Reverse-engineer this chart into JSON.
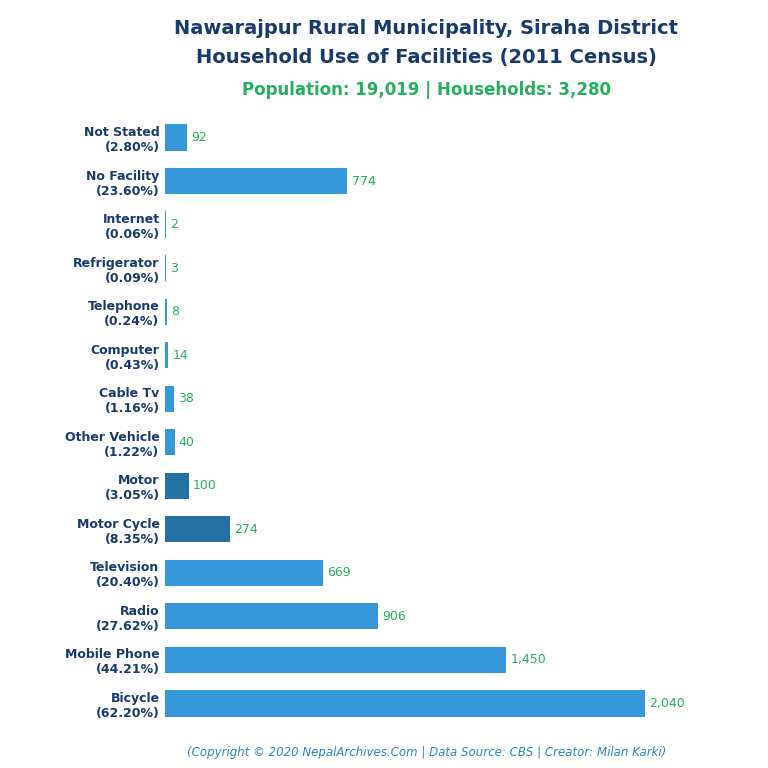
{
  "title_line1": "Nawarajpur Rural Municipality, Siraha District",
  "title_line2": "Household Use of Facilities (2011 Census)",
  "subtitle": "Population: 19,019 | Households: 3,280",
  "copyright": "(Copyright © 2020 NepalArchives.Com | Data Source: CBS | Creator: Milan Karki)",
  "categories": [
    "Not Stated\n(2.80%)",
    "No Facility\n(23.60%)",
    "Internet\n(0.06%)",
    "Refrigerator\n(0.09%)",
    "Telephone\n(0.24%)",
    "Computer\n(0.43%)",
    "Cable Tv\n(1.16%)",
    "Other Vehicle\n(1.22%)",
    "Motor\n(3.05%)",
    "Motor Cycle\n(8.35%)",
    "Television\n(20.40%)",
    "Radio\n(27.62%)",
    "Mobile Phone\n(44.21%)",
    "Bicycle\n(62.20%)"
  ],
  "values": [
    92,
    774,
    2,
    3,
    8,
    14,
    38,
    40,
    100,
    274,
    669,
    906,
    1450,
    2040
  ],
  "value_labels": [
    "92",
    "774",
    "2",
    "3",
    "8",
    "14",
    "38",
    "40",
    "100",
    "274",
    "669",
    "906",
    "1,450",
    "2,040"
  ],
  "bar_color_light": "#3498DB",
  "bar_color_dark": "#2472A4",
  "title_color": "#1A3A6E",
  "subtitle_color": "#27AE60",
  "bar_label_color": "#27AE60",
  "copyright_color": "#2E86C1",
  "bg_color": "#FFFFFF",
  "xlim": [
    0,
    2300
  ],
  "title_fontsize": 14,
  "subtitle_fontsize": 12,
  "label_fontsize": 9,
  "value_fontsize": 9,
  "copyright_fontsize": 8.5
}
